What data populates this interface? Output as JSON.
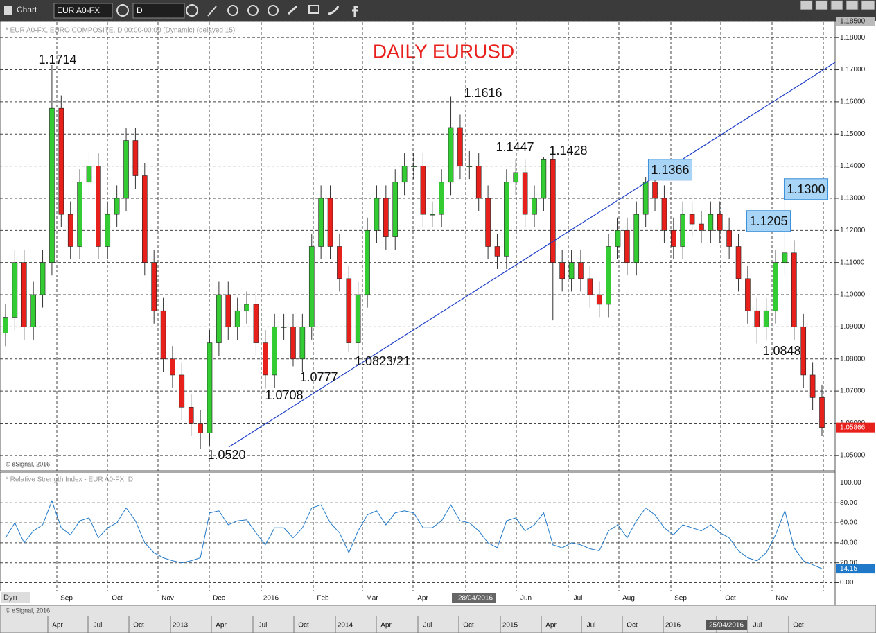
{
  "toolbar": {
    "title": "Chart",
    "symbol": "EUR A0-FX",
    "interval": "D"
  },
  "chart_data": [
    {
      "type": "candlestick",
      "title": "DAILY EURUSD",
      "subtitle": "* EUR A0-FX, EURO COMPOSITE, D 00:00-00:00 (Dynamic) (delayed 15)",
      "source": "© eSignal, 2016",
      "up_color": "#33cc33",
      "down_color": "#e8201c",
      "ylim": [
        1.045,
        1.185
      ],
      "yticks": [
        {
          "value": 1.05,
          "label": "1.05000"
        },
        {
          "value": 1.06,
          "label": "1.06000"
        },
        {
          "value": 1.07,
          "label": "1.07000"
        },
        {
          "value": 1.08,
          "label": "1.08000"
        },
        {
          "value": 1.09,
          "label": "1.09000"
        },
        {
          "value": 1.1,
          "label": "1.10000"
        },
        {
          "value": 1.11,
          "label": "1.11000"
        },
        {
          "value": 1.12,
          "label": "1.12000"
        },
        {
          "value": 1.13,
          "label": "1.13000"
        },
        {
          "value": 1.14,
          "label": "1.14000"
        },
        {
          "value": 1.15,
          "label": "1.15000"
        },
        {
          "value": 1.16,
          "label": "1.16000"
        },
        {
          "value": 1.17,
          "label": "1.17000"
        },
        {
          "value": 1.18,
          "label": "1.18000"
        },
        {
          "value": 1.185,
          "label": "1.18500"
        }
      ],
      "grid": true,
      "categories": [
        "Sep",
        "Oct",
        "Nov",
        "Dec",
        "2016",
        "Feb",
        "Mar",
        "Apr",
        "28/04/2016",
        "Jun",
        "Jul",
        "Aug",
        "Sep",
        "Oct",
        "Nov"
      ],
      "overview_labels": [
        "Apr",
        "Jul",
        "Oct",
        "2013",
        "Apr",
        "Jul",
        "Oct",
        "2014",
        "Apr",
        "Jul",
        "Oct",
        "2015",
        "Apr",
        "Jul",
        "Oct",
        "2016",
        "25/04/2016",
        "Jul",
        "Oct"
      ],
      "annotations": [
        {
          "text": "1.1714",
          "boxed": false
        },
        {
          "text": "1.1616",
          "boxed": false
        },
        {
          "text": "1.1447",
          "boxed": false
        },
        {
          "text": "1.1428",
          "boxed": false
        },
        {
          "text": "1.1366",
          "boxed": true
        },
        {
          "text": "1.1300",
          "boxed": true
        },
        {
          "text": "1.1205",
          "boxed": true
        },
        {
          "text": "1.0848",
          "boxed": false
        },
        {
          "text": "1.0823/21",
          "boxed": false
        },
        {
          "text": "1.0777",
          "boxed": false
        },
        {
          "text": "1.0708",
          "boxed": false
        },
        {
          "text": "1.0520",
          "boxed": false
        }
      ],
      "ohlc": [
        [
          1.088,
          1.097,
          1.084,
          1.093
        ],
        [
          1.093,
          1.114,
          1.089,
          1.11
        ],
        [
          1.11,
          1.114,
          1.086,
          1.09
        ],
        [
          1.09,
          1.104,
          1.086,
          1.1
        ],
        [
          1.1,
          1.114,
          1.096,
          1.11
        ],
        [
          1.11,
          1.1714,
          1.106,
          1.158
        ],
        [
          1.158,
          1.162,
          1.121,
          1.125
        ],
        [
          1.125,
          1.129,
          1.111,
          1.115
        ],
        [
          1.115,
          1.139,
          1.111,
          1.135
        ],
        [
          1.135,
          1.144,
          1.131,
          1.14
        ],
        [
          1.14,
          1.144,
          1.111,
          1.115
        ],
        [
          1.115,
          1.129,
          1.111,
          1.125
        ],
        [
          1.125,
          1.134,
          1.121,
          1.13
        ],
        [
          1.13,
          1.152,
          1.126,
          1.148
        ],
        [
          1.148,
          1.152,
          1.133,
          1.137
        ],
        [
          1.137,
          1.141,
          1.106,
          1.11
        ],
        [
          1.11,
          1.114,
          1.091,
          1.095
        ],
        [
          1.095,
          1.099,
          1.076,
          1.08
        ],
        [
          1.08,
          1.084,
          1.071,
          1.075
        ],
        [
          1.075,
          1.079,
          1.061,
          1.065
        ],
        [
          1.065,
          1.069,
          1.056,
          1.06
        ],
        [
          1.06,
          1.064,
          1.052,
          1.057
        ],
        [
          1.057,
          1.089,
          1.053,
          1.085
        ],
        [
          1.085,
          1.104,
          1.081,
          1.1
        ],
        [
          1.1,
          1.104,
          1.086,
          1.09
        ],
        [
          1.09,
          1.099,
          1.086,
          1.095
        ],
        [
          1.095,
          1.101,
          1.091,
          1.097
        ],
        [
          1.097,
          1.101,
          1.081,
          1.085
        ],
        [
          1.085,
          1.089,
          1.0708,
          1.075
        ],
        [
          1.075,
          1.094,
          1.071,
          1.09
        ],
        [
          1.09,
          1.094,
          1.086,
          1.09
        ],
        [
          1.09,
          1.094,
          1.0777,
          1.08
        ],
        [
          1.08,
          1.094,
          1.076,
          1.09
        ],
        [
          1.09,
          1.119,
          1.086,
          1.115
        ],
        [
          1.115,
          1.134,
          1.111,
          1.13
        ],
        [
          1.13,
          1.134,
          1.111,
          1.115
        ],
        [
          1.115,
          1.119,
          1.101,
          1.105
        ],
        [
          1.105,
          1.109,
          1.0823,
          1.085
        ],
        [
          1.085,
          1.104,
          1.081,
          1.1
        ],
        [
          1.1,
          1.124,
          1.096,
          1.12
        ],
        [
          1.12,
          1.134,
          1.116,
          1.13
        ],
        [
          1.13,
          1.134,
          1.114,
          1.118
        ],
        [
          1.118,
          1.139,
          1.114,
          1.135
        ],
        [
          1.135,
          1.144,
          1.131,
          1.14
        ],
        [
          1.14,
          1.144,
          1.136,
          1.14
        ],
        [
          1.14,
          1.144,
          1.121,
          1.125
        ],
        [
          1.125,
          1.129,
          1.121,
          1.125
        ],
        [
          1.125,
          1.139,
          1.121,
          1.135
        ],
        [
          1.135,
          1.1616,
          1.131,
          1.152
        ],
        [
          1.152,
          1.156,
          1.136,
          1.14
        ],
        [
          1.14,
          1.1447,
          1.136,
          1.14
        ],
        [
          1.14,
          1.144,
          1.126,
          1.13
        ],
        [
          1.13,
          1.134,
          1.111,
          1.115
        ],
        [
          1.115,
          1.119,
          1.108,
          1.112
        ],
        [
          1.112,
          1.139,
          1.108,
          1.135
        ],
        [
          1.135,
          1.142,
          1.131,
          1.138
        ],
        [
          1.138,
          1.142,
          1.121,
          1.125
        ],
        [
          1.125,
          1.134,
          1.121,
          1.13
        ],
        [
          1.13,
          1.1428,
          1.126,
          1.142
        ],
        [
          1.142,
          1.146,
          1.092,
          1.11
        ],
        [
          1.11,
          1.114,
          1.101,
          1.105
        ],
        [
          1.105,
          1.114,
          1.101,
          1.11
        ],
        [
          1.11,
          1.114,
          1.101,
          1.105
        ],
        [
          1.105,
          1.109,
          1.096,
          1.1
        ],
        [
          1.1,
          1.104,
          1.093,
          1.097
        ],
        [
          1.097,
          1.119,
          1.093,
          1.115
        ],
        [
          1.115,
          1.124,
          1.111,
          1.12
        ],
        [
          1.12,
          1.124,
          1.106,
          1.11
        ],
        [
          1.11,
          1.129,
          1.106,
          1.125
        ],
        [
          1.125,
          1.1366,
          1.121,
          1.135
        ],
        [
          1.135,
          1.139,
          1.126,
          1.13
        ],
        [
          1.13,
          1.134,
          1.116,
          1.12
        ],
        [
          1.12,
          1.124,
          1.111,
          1.115
        ],
        [
          1.115,
          1.129,
          1.111,
          1.125
        ],
        [
          1.125,
          1.129,
          1.118,
          1.122
        ],
        [
          1.122,
          1.126,
          1.116,
          1.12
        ],
        [
          1.12,
          1.129,
          1.116,
          1.125
        ],
        [
          1.125,
          1.129,
          1.116,
          1.12
        ],
        [
          1.12,
          1.124,
          1.111,
          1.115
        ],
        [
          1.115,
          1.119,
          1.101,
          1.105
        ],
        [
          1.105,
          1.109,
          1.091,
          1.095
        ],
        [
          1.095,
          1.099,
          1.0848,
          1.09
        ],
        [
          1.09,
          1.099,
          1.086,
          1.095
        ],
        [
          1.095,
          1.114,
          1.091,
          1.11
        ],
        [
          1.11,
          1.13,
          1.106,
          1.113
        ],
        [
          1.113,
          1.117,
          1.086,
          1.09
        ],
        [
          1.09,
          1.094,
          1.071,
          1.075
        ],
        [
          1.075,
          1.079,
          1.064,
          1.068
        ],
        [
          1.068,
          1.072,
          1.056,
          1.05866
        ]
      ],
      "last_value_label": "1.05866"
    },
    {
      "type": "line",
      "title": "* Relative Strength Index - EUR A0-FX, D",
      "color": "#1f78c8",
      "ylim": [
        -8,
        108
      ],
      "yticks": [
        {
          "value": 0,
          "label": "0.00"
        },
        {
          "value": 20,
          "label": "20.00"
        },
        {
          "value": 40,
          "label": "40.00"
        },
        {
          "value": 60,
          "label": "60.00"
        },
        {
          "value": 80,
          "label": "80.00"
        },
        {
          "value": 100,
          "label": "100.00"
        }
      ],
      "grid": true,
      "values": [
        45,
        60,
        40,
        52,
        58,
        82,
        55,
        48,
        62,
        65,
        45,
        55,
        60,
        75,
        62,
        40,
        30,
        25,
        22,
        20,
        22,
        25,
        70,
        72,
        58,
        62,
        63,
        50,
        38,
        55,
        55,
        45,
        55,
        75,
        78,
        60,
        50,
        30,
        52,
        68,
        72,
        58,
        70,
        72,
        70,
        55,
        55,
        62,
        78,
        62,
        60,
        52,
        40,
        35,
        62,
        65,
        52,
        58,
        70,
        38,
        35,
        40,
        38,
        34,
        32,
        52,
        58,
        45,
        62,
        75,
        68,
        55,
        48,
        58,
        55,
        52,
        58,
        50,
        45,
        32,
        25,
        22,
        30,
        48,
        72,
        35,
        22,
        18,
        14.15
      ],
      "scroll_label": "Dyn",
      "source": "© eSignal, 2016"
    }
  ]
}
